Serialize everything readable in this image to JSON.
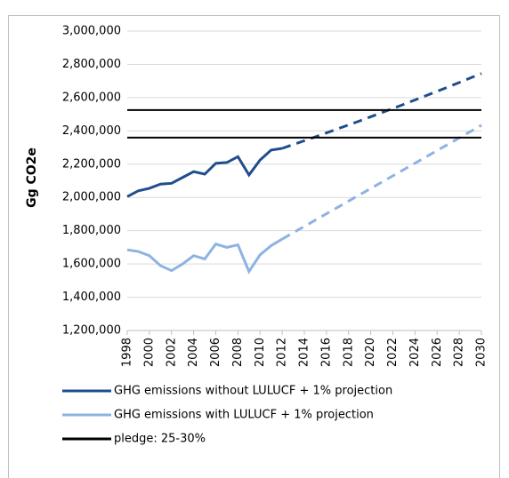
{
  "chart_data": {
    "type": "line",
    "y_label": "Gg CO2e",
    "x": [
      1998,
      1999,
      2000,
      2001,
      2002,
      2003,
      2004,
      2005,
      2006,
      2007,
      2008,
      2009,
      2010,
      2011,
      2012,
      2013,
      2014,
      2015,
      2016,
      2017,
      2018,
      2019,
      2020,
      2021,
      2022,
      2023,
      2024,
      2025,
      2026,
      2027,
      2028,
      2029,
      2030
    ],
    "xlim": [
      1998,
      2030
    ],
    "xticks": [
      1998,
      2000,
      2002,
      2004,
      2006,
      2008,
      2010,
      2012,
      2014,
      2016,
      2018,
      2020,
      2022,
      2024,
      2026,
      2028,
      2030
    ],
    "ylim": [
      1200000,
      3000000
    ],
    "yticks": [
      {
        "value": 1200000,
        "label": "1,200,000"
      },
      {
        "value": 1400000,
        "label": "1,400,000"
      },
      {
        "value": 1600000,
        "label": "1,600,000"
      },
      {
        "value": 1800000,
        "label": "1,800,000"
      },
      {
        "value": 2000000,
        "label": "2,000,000"
      },
      {
        "value": 2200000,
        "label": "2,200,000"
      },
      {
        "value": 2400000,
        "label": "2,400,000"
      },
      {
        "value": 2600000,
        "label": "2,600,000"
      },
      {
        "value": 2800000,
        "label": "2,800,000"
      },
      {
        "value": 3000000,
        "label": "3,000,000"
      }
    ],
    "grid": true,
    "projection_start": 2012,
    "series": [
      {
        "name": "GHG emissions without LULUCF + 1% projection",
        "color": "#1f4e8c",
        "values": [
          2005000,
          2040000,
          2055000,
          2080000,
          2085000,
          2120000,
          2155000,
          2140000,
          2205000,
          2210000,
          2245000,
          2135000,
          2225000,
          2285000,
          2295000,
          2318000,
          2341000,
          2364000,
          2388000,
          2412000,
          2436000,
          2460000,
          2485000,
          2510000,
          2535000,
          2560000,
          2586000,
          2612000,
          2638000,
          2664000,
          2691000,
          2718000,
          2745000
        ]
      },
      {
        "name": "GHG emissions with LULUCF + 1% projection",
        "color": "#8db3e2",
        "values": [
          1685000,
          1675000,
          1650000,
          1590000,
          1560000,
          1600000,
          1650000,
          1630000,
          1720000,
          1700000,
          1715000,
          1555000,
          1655000,
          1710000,
          1750000,
          1788000,
          1826000,
          1864000,
          1902000,
          1940000,
          1978000,
          2016000,
          2054000,
          2092000,
          2130000,
          2168000,
          2206000,
          2244000,
          2282000,
          2320000,
          2358000,
          2396000,
          2434000
        ]
      }
    ],
    "pledge": {
      "name": "pledge: 25-30%",
      "color": "#000000",
      "values": [
        2525000,
        2360000
      ]
    }
  }
}
